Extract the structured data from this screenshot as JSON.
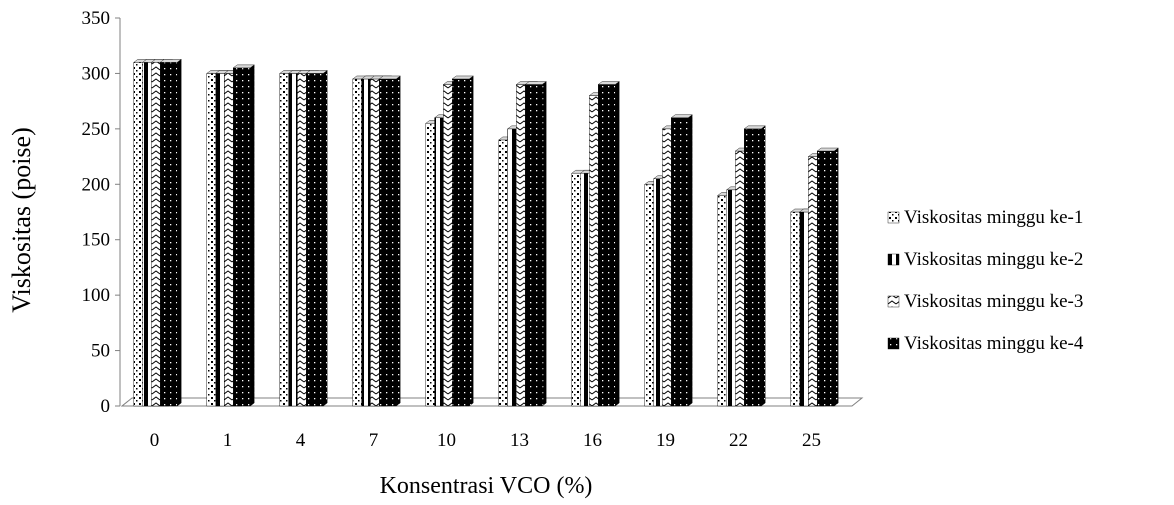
{
  "chart_data": {
    "type": "bar",
    "title": "",
    "xlabel": "Konsentrasi VCO (%)",
    "ylabel": "Viskositas (poise)",
    "ylim": [
      0,
      350
    ],
    "yticks": [
      0,
      50,
      100,
      150,
      200,
      250,
      300,
      350
    ],
    "grid": false,
    "legend_position": "right",
    "categories": [
      "0",
      "1",
      "4",
      "7",
      "10",
      "13",
      "16",
      "19",
      "22",
      "25"
    ],
    "series": [
      {
        "name": "Viskositas minggu ke-1",
        "pattern": "dotted",
        "values": [
          310,
          300,
          300,
          295,
          255,
          240,
          210,
          200,
          190,
          175
        ]
      },
      {
        "name": "Viskositas minggu ke-2",
        "pattern": "vertical-stripes",
        "values": [
          310,
          300,
          300,
          295,
          260,
          250,
          210,
          205,
          195,
          175
        ]
      },
      {
        "name": "Viskositas minggu ke-3",
        "pattern": "zigzag",
        "values": [
          310,
          300,
          300,
          295,
          290,
          290,
          280,
          250,
          230,
          225
        ]
      },
      {
        "name": "Viskositas minggu ke-4",
        "pattern": "dark-dotted",
        "values": [
          310,
          305,
          300,
          295,
          295,
          290,
          290,
          260,
          250,
          230
        ]
      }
    ]
  }
}
